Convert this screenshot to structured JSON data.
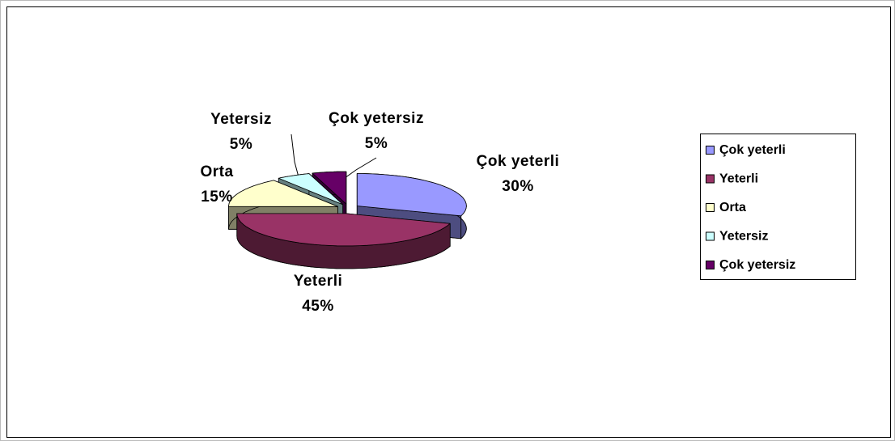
{
  "chart_data": {
    "type": "pie",
    "categories": [
      "Çok yeterli",
      "Yeterli",
      "Orta",
      "Yetersiz",
      "Çok yetersiz"
    ],
    "values": [
      30,
      45,
      15,
      5,
      5
    ],
    "value_labels": [
      "30%",
      "45%",
      "15%",
      "5%",
      "5%"
    ],
    "colors": [
      "#9999ff",
      "#993366",
      "#ffffcc",
      "#ccffff",
      "#660066"
    ],
    "legend": "right"
  }
}
